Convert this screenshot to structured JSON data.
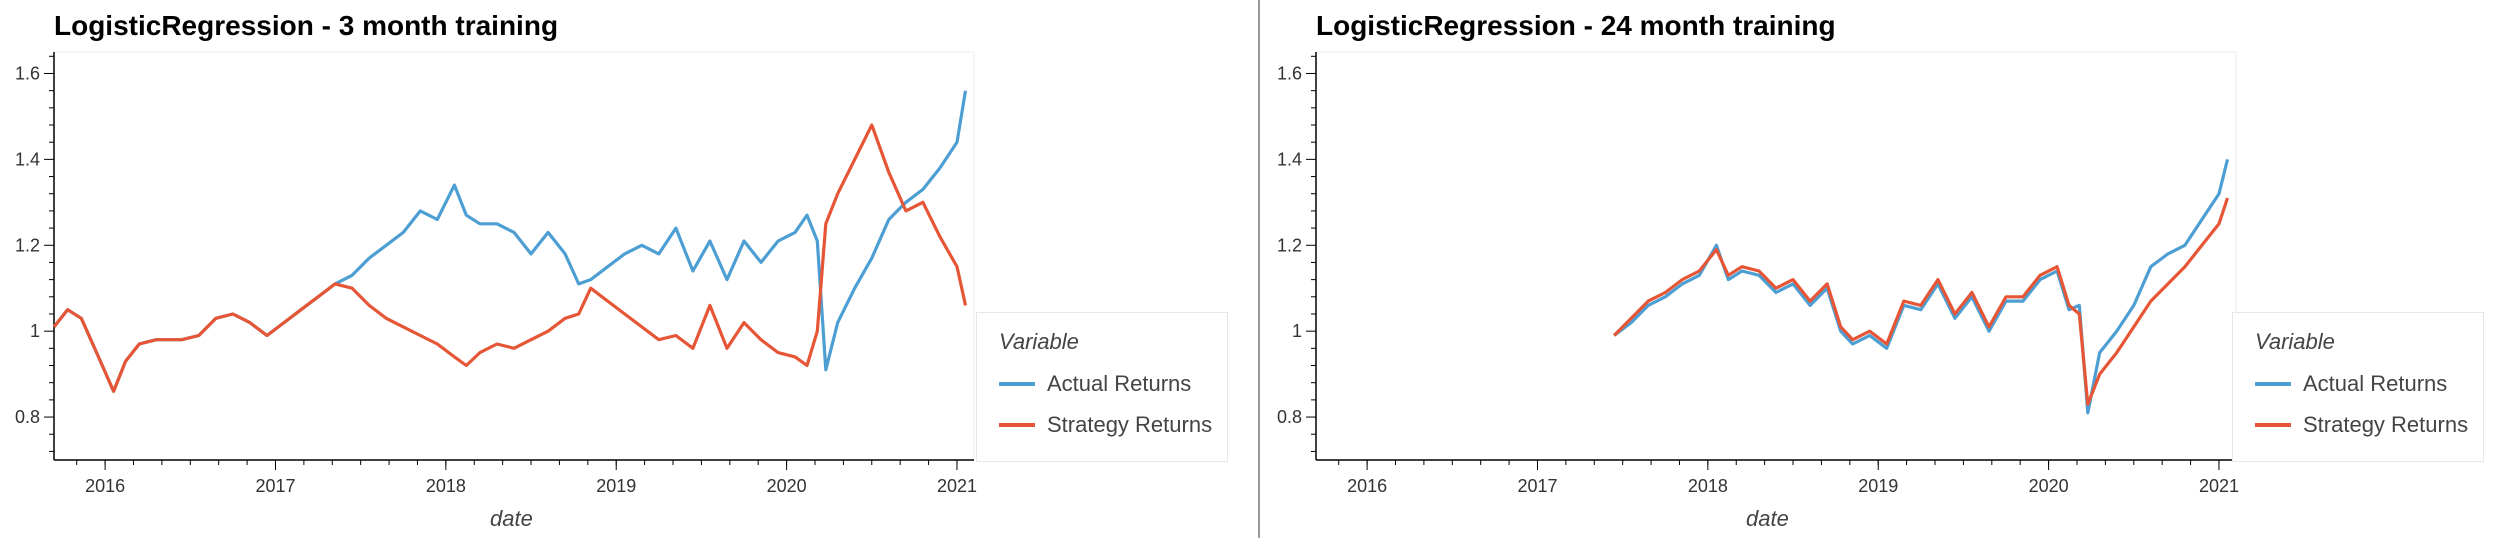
{
  "colors": {
    "actual": "#4c9ed3",
    "strategy": "#e65636"
  },
  "chart_data": [
    {
      "type": "line",
      "title": "LogisticRegression - 3 month training",
      "xlabel": "date",
      "ylabel": "",
      "xlim": [
        2015.7,
        2021.1
      ],
      "ylim": [
        0.7,
        1.65
      ],
      "xticks": [
        "2016",
        "2017",
        "2018",
        "2019",
        "2020",
        "2021"
      ],
      "yticks": [
        "0.8",
        "1",
        "1.2",
        "1.4",
        "1.6"
      ],
      "legend": {
        "title": "Variable",
        "placement": "right"
      },
      "grid": false,
      "series": [
        {
          "name": "Actual Returns",
          "x": [
            2015.7,
            2015.78,
            2015.86,
            2015.95,
            2016.05,
            2016.12,
            2016.2,
            2016.3,
            2016.45,
            2016.55,
            2016.65,
            2016.75,
            2016.85,
            2016.95,
            2017.05,
            2017.15,
            2017.25,
            2017.35,
            2017.45,
            2017.55,
            2017.65,
            2017.75,
            2017.85,
            2017.95,
            2018.05,
            2018.12,
            2018.2,
            2018.3,
            2018.4,
            2018.5,
            2018.6,
            2018.7,
            2018.78,
            2018.85,
            2018.95,
            2019.05,
            2019.15,
            2019.25,
            2019.35,
            2019.45,
            2019.55,
            2019.65,
            2019.75,
            2019.85,
            2019.95,
            2020.05,
            2020.12,
            2020.18,
            2020.23,
            2020.3,
            2020.4,
            2020.5,
            2020.6,
            2020.7,
            2020.8,
            2020.9,
            2021.0,
            2021.05
          ],
          "y": [
            1.01,
            1.05,
            1.03,
            0.95,
            0.86,
            0.93,
            0.97,
            0.98,
            0.98,
            0.99,
            1.03,
            1.04,
            1.02,
            0.99,
            1.02,
            1.05,
            1.08,
            1.11,
            1.13,
            1.17,
            1.2,
            1.23,
            1.28,
            1.26,
            1.34,
            1.27,
            1.25,
            1.25,
            1.23,
            1.18,
            1.23,
            1.18,
            1.11,
            1.12,
            1.15,
            1.18,
            1.2,
            1.18,
            1.24,
            1.14,
            1.21,
            1.12,
            1.21,
            1.16,
            1.21,
            1.23,
            1.27,
            1.21,
            0.91,
            1.02,
            1.1,
            1.17,
            1.26,
            1.3,
            1.33,
            1.38,
            1.44,
            1.56
          ]
        },
        {
          "name": "Strategy Returns",
          "x": [
            2015.7,
            2015.78,
            2015.86,
            2015.95,
            2016.05,
            2016.12,
            2016.2,
            2016.3,
            2016.45,
            2016.55,
            2016.65,
            2016.75,
            2016.85,
            2016.95,
            2017.05,
            2017.15,
            2017.25,
            2017.35,
            2017.45,
            2017.55,
            2017.65,
            2017.75,
            2017.85,
            2017.95,
            2018.05,
            2018.12,
            2018.2,
            2018.3,
            2018.4,
            2018.5,
            2018.6,
            2018.7,
            2018.78,
            2018.85,
            2018.95,
            2019.05,
            2019.15,
            2019.25,
            2019.35,
            2019.45,
            2019.55,
            2019.65,
            2019.75,
            2019.85,
            2019.95,
            2020.05,
            2020.12,
            2020.18,
            2020.23,
            2020.3,
            2020.4,
            2020.5,
            2020.6,
            2020.7,
            2020.8,
            2020.9,
            2021.0,
            2021.05
          ],
          "y": [
            1.01,
            1.05,
            1.03,
            0.95,
            0.86,
            0.93,
            0.97,
            0.98,
            0.98,
            0.99,
            1.03,
            1.04,
            1.02,
            0.99,
            1.02,
            1.05,
            1.08,
            1.11,
            1.1,
            1.06,
            1.03,
            1.01,
            0.99,
            0.97,
            0.94,
            0.92,
            0.95,
            0.97,
            0.96,
            0.98,
            1.0,
            1.03,
            1.04,
            1.1,
            1.07,
            1.04,
            1.01,
            0.98,
            0.99,
            0.96,
            1.06,
            0.96,
            1.02,
            0.98,
            0.95,
            0.94,
            0.92,
            1.0,
            1.25,
            1.32,
            1.4,
            1.48,
            1.37,
            1.28,
            1.3,
            1.22,
            1.15,
            1.06
          ]
        }
      ]
    },
    {
      "type": "line",
      "title": "LogisticRegression - 24 month training",
      "xlabel": "date",
      "ylabel": "",
      "xlim": [
        2015.7,
        2021.1
      ],
      "ylim": [
        0.7,
        1.65
      ],
      "xticks": [
        "2016",
        "2017",
        "2018",
        "2019",
        "2020",
        "2021"
      ],
      "yticks": [
        "0.8",
        "1",
        "1.2",
        "1.4",
        "1.6"
      ],
      "legend": {
        "title": "Variable",
        "placement": "right"
      },
      "grid": false,
      "series": [
        {
          "name": "Actual Returns",
          "x": [
            2017.45,
            2017.55,
            2017.65,
            2017.75,
            2017.85,
            2017.95,
            2018.05,
            2018.12,
            2018.2,
            2018.3,
            2018.4,
            2018.5,
            2018.6,
            2018.7,
            2018.78,
            2018.85,
            2018.95,
            2019.05,
            2019.15,
            2019.25,
            2019.35,
            2019.45,
            2019.55,
            2019.65,
            2019.75,
            2019.85,
            2019.95,
            2020.05,
            2020.12,
            2020.18,
            2020.23,
            2020.3,
            2020.4,
            2020.5,
            2020.6,
            2020.7,
            2020.8,
            2020.9,
            2021.0,
            2021.05
          ],
          "y": [
            0.99,
            1.02,
            1.06,
            1.08,
            1.11,
            1.13,
            1.2,
            1.12,
            1.14,
            1.13,
            1.09,
            1.11,
            1.06,
            1.1,
            1.0,
            0.97,
            0.99,
            0.96,
            1.06,
            1.05,
            1.11,
            1.03,
            1.08,
            1.0,
            1.07,
            1.07,
            1.12,
            1.14,
            1.05,
            1.06,
            0.81,
            0.95,
            1.0,
            1.06,
            1.15,
            1.18,
            1.2,
            1.26,
            1.32,
            1.4
          ]
        },
        {
          "name": "Strategy Returns",
          "x": [
            2017.45,
            2017.55,
            2017.65,
            2017.75,
            2017.85,
            2017.95,
            2018.05,
            2018.12,
            2018.2,
            2018.3,
            2018.4,
            2018.5,
            2018.6,
            2018.7,
            2018.78,
            2018.85,
            2018.95,
            2019.05,
            2019.15,
            2019.25,
            2019.35,
            2019.45,
            2019.55,
            2019.65,
            2019.75,
            2019.85,
            2019.95,
            2020.05,
            2020.12,
            2020.18,
            2020.23,
            2020.3,
            2020.4,
            2020.5,
            2020.6,
            2020.7,
            2020.8,
            2020.9,
            2021.0,
            2021.05
          ],
          "y": [
            0.99,
            1.03,
            1.07,
            1.09,
            1.12,
            1.14,
            1.19,
            1.13,
            1.15,
            1.14,
            1.1,
            1.12,
            1.07,
            1.11,
            1.01,
            0.98,
            1.0,
            0.97,
            1.07,
            1.06,
            1.12,
            1.04,
            1.09,
            1.01,
            1.08,
            1.08,
            1.13,
            1.15,
            1.06,
            1.04,
            0.83,
            0.9,
            0.95,
            1.01,
            1.07,
            1.11,
            1.15,
            1.2,
            1.25,
            1.31
          ]
        }
      ]
    }
  ]
}
